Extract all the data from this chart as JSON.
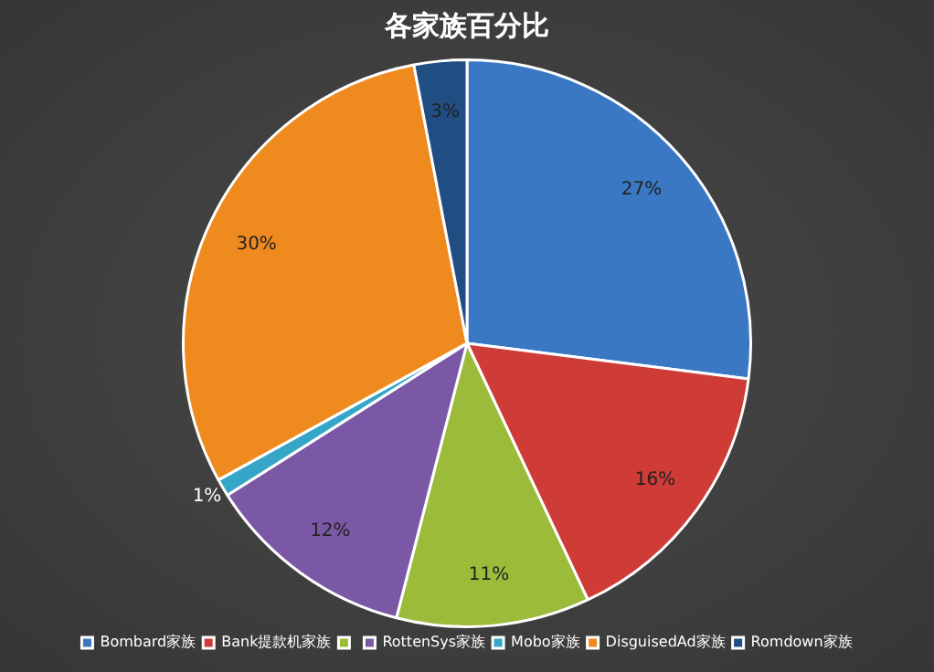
{
  "chart_data": {
    "type": "pie",
    "title": "各家族百分比",
    "categories": [
      "Bombard家族",
      "Bank提款机家族",
      null,
      "RottenSys家族",
      "Mobo家族",
      "DisguisedAd家族",
      "Romdown家族"
    ],
    "values": [
      27,
      16,
      11,
      12,
      1,
      30,
      3
    ],
    "value_labels": [
      "27%",
      "16%",
      "11%",
      "12%",
      "1%",
      "30%",
      "3%"
    ],
    "colors": [
      "#3a78c4",
      "#cf3b37",
      "#9cbb3b",
      "#7b58a5",
      "#35a6c8",
      "#ef8a1f",
      "#214e82"
    ],
    "legend": "bottom"
  }
}
